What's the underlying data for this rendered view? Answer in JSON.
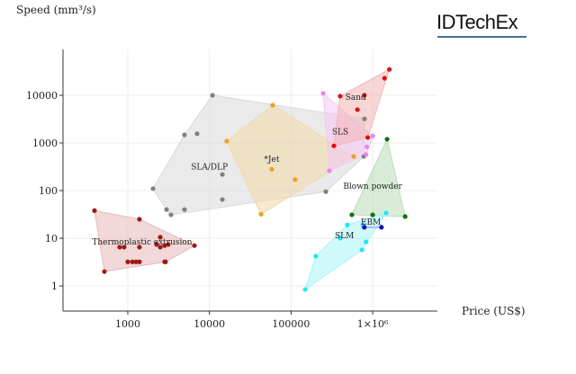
{
  "brand": {
    "name": "IDTechEx",
    "accent": "#4a6d96"
  },
  "chart_data": {
    "type": "scatter",
    "title": "",
    "xlabel": "Price (US$)",
    "ylabel": "Speed (mm³/s)",
    "xscale": "log",
    "yscale": "log",
    "xlim": [
      190,
      8000000
    ],
    "ylim": [
      0.45,
      60000
    ],
    "xticks": [
      {
        "value": 1000,
        "label": "1000"
      },
      {
        "value": 10000,
        "label": "10000"
      },
      {
        "value": 100000,
        "label": "100000"
      },
      {
        "value": 1000000,
        "label": "1×10⁶"
      }
    ],
    "yticks": [
      {
        "value": 1,
        "label": "1"
      },
      {
        "value": 10,
        "label": "10"
      },
      {
        "value": 100,
        "label": "100"
      },
      {
        "value": 1000,
        "label": "1000"
      },
      {
        "value": 10000,
        "label": "10000"
      }
    ],
    "grid": true,
    "legend": "none",
    "series": [
      {
        "name": "SLA/DLP",
        "color": "#808080",
        "fill": "#d9d9d9",
        "label_at": [
          10000,
          280
        ],
        "points": [
          [
            10900,
            10000
          ],
          [
            4950,
            1480
          ],
          [
            7060,
            1560
          ],
          [
            2040,
            110
          ],
          [
            14400,
            65
          ],
          [
            2980,
            40
          ],
          [
            3380,
            31
          ],
          [
            4950,
            40
          ],
          [
            14400,
            218
          ],
          [
            267000,
            95
          ],
          [
            794000,
            3200
          ],
          [
            780000,
            520
          ]
        ]
      },
      {
        "name": "*Jet",
        "color": "#f0a020",
        "fill": "#f0d9a8",
        "label_at": [
          58000,
          400
        ],
        "points": [
          [
            59600,
            6200
          ],
          [
            16300,
            1090
          ],
          [
            58000,
            280
          ],
          [
            112000,
            170
          ],
          [
            42900,
            32
          ],
          [
            585000,
            520
          ]
        ]
      },
      {
        "name": "SLS",
        "color": "#ee82ee",
        "fill": "#f4c6f4",
        "label_at": [
          400000,
          1500
        ],
        "points": [
          [
            247000,
            11000
          ],
          [
            1000000,
            1400
          ],
          [
            850000,
            830
          ],
          [
            830000,
            570
          ],
          [
            295000,
            260
          ]
        ]
      },
      {
        "name": "Sand",
        "color": "#e01010",
        "fill": "#f4b4b4",
        "label_at": [
          620000,
          8000
        ],
        "points": [
          [
            1600000,
            35000
          ],
          [
            1400000,
            22800
          ],
          [
            400000,
            9600
          ],
          [
            790000,
            10000
          ],
          [
            650000,
            5000
          ],
          [
            335000,
            870
          ],
          [
            870000,
            1300
          ]
        ]
      },
      {
        "name": "Blown powder",
        "color": "#107010",
        "fill": "#b8dcb8",
        "label_at": [
          1000000,
          110
        ],
        "points": [
          [
            556000,
            31
          ],
          [
            1000000,
            31
          ],
          [
            2500000,
            28.5
          ],
          [
            1500000,
            1200
          ]
        ]
      },
      {
        "name": "SLM",
        "color": "#20e8f0",
        "fill": "#a8f4f8",
        "label_at": [
          450000,
          10
        ],
        "points": [
          [
            490000,
            19
          ],
          [
            760000,
            19
          ],
          [
            400000,
            10
          ],
          [
            830000,
            8.4
          ],
          [
            740000,
            5.7
          ],
          [
            201000,
            4.2
          ],
          [
            149000,
            0.84
          ],
          [
            1460000,
            34
          ]
        ]
      },
      {
        "name": "EBM",
        "color": "#1010c0",
        "fill": "#a8b8f0",
        "label_at": [
          950000,
          19
        ],
        "points": [
          [
            790000,
            17
          ],
          [
            1280000,
            17
          ]
        ]
      },
      {
        "name": "Thermoplastic extrusion",
        "color": "#a01818",
        "fill": "#e8b8b8",
        "label_at": [
          1500,
          7.4
        ],
        "points": [
          [
            391,
            38
          ],
          [
            1390,
            25
          ],
          [
            517,
            2
          ],
          [
            6550,
            7
          ],
          [
            2500,
            10.5
          ],
          [
            794,
            6.5
          ],
          [
            900,
            6.5
          ],
          [
            1390,
            6.5
          ],
          [
            1000,
            3.2
          ],
          [
            1140,
            3.2
          ],
          [
            1260,
            3.2
          ],
          [
            1390,
            3.2
          ],
          [
            2830,
            3.2
          ],
          [
            2900,
            3.2
          ],
          [
            2250,
            7.4
          ],
          [
            2500,
            6.5
          ],
          [
            2830,
            7
          ],
          [
            3130,
            7.4
          ]
        ]
      }
    ]
  }
}
